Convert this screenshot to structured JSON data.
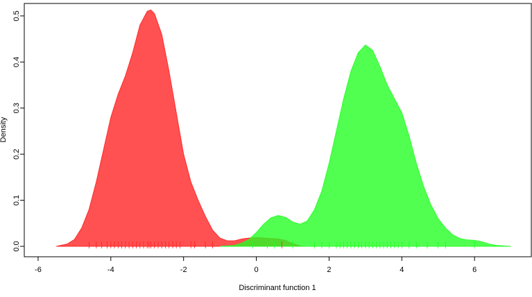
{
  "chart_data": {
    "type": "density",
    "xlabel": "Discriminant function 1",
    "ylabel": "Density",
    "xlim": [
      -6.38,
      7.56
    ],
    "ylim": [
      -0.0226,
      0.527
    ],
    "xticks": [
      -6,
      -4,
      -2,
      0,
      2,
      4,
      6
    ],
    "yticks": [
      {
        "value": 0,
        "label": "0.0"
      },
      0.1,
      0.2,
      0.3,
      0.4,
      0.5
    ],
    "series": [
      {
        "color": "#ff2020",
        "x": [
          -5.5,
          -5.2,
          -5.0,
          -4.8,
          -4.6,
          -4.4,
          -4.2,
          -4.0,
          -3.8,
          -3.6,
          -3.4,
          -3.2,
          -3.0,
          -2.9,
          -2.8,
          -2.6,
          -2.4,
          -2.2,
          -2.0,
          -1.8,
          -1.6,
          -1.4,
          -1.2,
          -1.0,
          -0.8,
          -0.6,
          -0.4,
          -0.2,
          0,
          0.2,
          0.4,
          0.6,
          0.8,
          1.0,
          1.2,
          1.3
        ],
        "values": [
          0,
          0.005,
          0.015,
          0.04,
          0.08,
          0.14,
          0.21,
          0.28,
          0.33,
          0.37,
          0.42,
          0.48,
          0.51,
          0.513,
          0.505,
          0.46,
          0.38,
          0.29,
          0.2,
          0.14,
          0.1,
          0.065,
          0.035,
          0.018,
          0.012,
          0.012,
          0.016,
          0.018,
          0.019,
          0.018,
          0.017,
          0.016,
          0.013,
          0.006,
          0.001,
          0
        ],
        "rug": [
          -4.6,
          -4.4,
          -4.25,
          -4.1,
          -4.0,
          -3.9,
          -3.8,
          -3.7,
          -3.6,
          -3.5,
          -3.4,
          -3.3,
          -3.2,
          -3.1,
          -3.0,
          -2.95,
          -2.9,
          -2.8,
          -2.7,
          -2.6,
          -2.5,
          -2.4,
          -2.3,
          -2.2,
          -2.1,
          -1.8,
          -1.7,
          -1.4,
          -1.2,
          0.7
        ]
      },
      {
        "color": "#20ff20",
        "x": [
          -1.0,
          -0.6,
          -0.4,
          -0.2,
          0,
          0.2,
          0.4,
          0.6,
          0.8,
          1.0,
          1.2,
          1.4,
          1.6,
          1.8,
          2.0,
          2.2,
          2.4,
          2.6,
          2.8,
          3.0,
          3.2,
          3.4,
          3.6,
          3.8,
          4.0,
          4.2,
          4.4,
          4.6,
          4.8,
          5.0,
          5.2,
          5.4,
          5.6,
          5.8,
          6.0,
          6.2,
          6.4,
          6.6,
          7.0
        ],
        "values": [
          0,
          0.002,
          0.007,
          0.015,
          0.03,
          0.048,
          0.062,
          0.067,
          0.063,
          0.053,
          0.048,
          0.055,
          0.08,
          0.12,
          0.18,
          0.25,
          0.32,
          0.38,
          0.42,
          0.437,
          0.425,
          0.39,
          0.35,
          0.32,
          0.29,
          0.24,
          0.18,
          0.13,
          0.09,
          0.06,
          0.04,
          0.025,
          0.017,
          0.014,
          0.013,
          0.01,
          0.005,
          0.002,
          0
        ],
        "rug": [
          -0.1,
          0.3,
          0.5,
          1.0,
          1.6,
          1.8,
          2.0,
          2.2,
          2.3,
          2.4,
          2.5,
          2.6,
          2.7,
          2.8,
          2.9,
          3.0,
          3.1,
          3.2,
          3.3,
          3.4,
          3.5,
          3.6,
          3.7,
          3.8,
          3.9,
          4.0,
          4.2,
          4.4,
          4.7,
          5.0,
          5.2,
          6.0
        ]
      }
    ]
  }
}
